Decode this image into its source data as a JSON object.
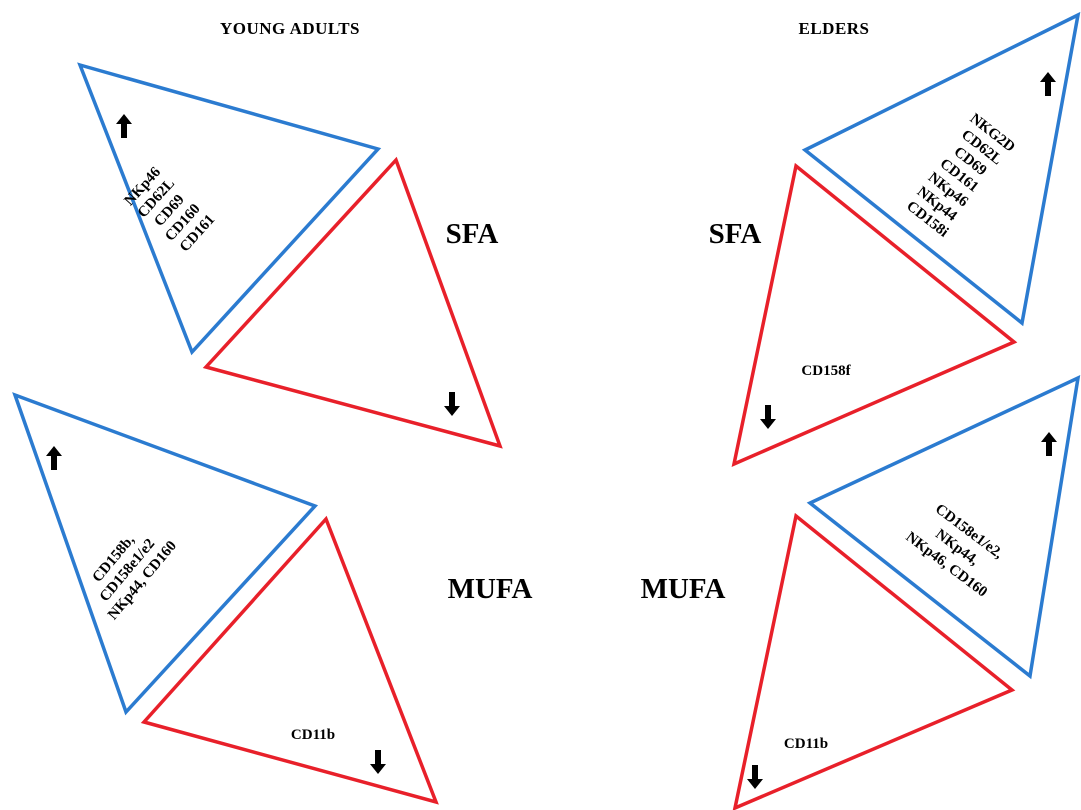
{
  "headers": {
    "young": "YOUNG ADULTS",
    "elders": "ELDERS"
  },
  "labels": {
    "sfa": "SFA",
    "mufa": "MUFA"
  },
  "colors": {
    "up_triangle": "#2b7bd0",
    "down_triangle": "#e8202a",
    "arrow": "#000000"
  },
  "young": {
    "sfa": {
      "up_markers": [
        "NKp46",
        "CD62L",
        "CD69",
        "CD160",
        "CD161"
      ],
      "down_markers": []
    },
    "mufa": {
      "up_markers": [
        "CD158b,",
        "CD158e1/e2",
        "NKp44, CD160"
      ],
      "down_markers": [
        "CD11b"
      ]
    }
  },
  "elders": {
    "sfa": {
      "up_markers": [
        "NKG2D",
        "CD62L",
        "CD69",
        "CD161",
        "NKp46",
        "NKp44",
        "CD158i"
      ],
      "down_markers": [
        "CD158f"
      ]
    },
    "mufa": {
      "up_markers": [
        "CD158e1/e2,",
        "NKp44,",
        "NKp46, CD160"
      ],
      "down_markers": [
        "CD11b"
      ]
    }
  }
}
